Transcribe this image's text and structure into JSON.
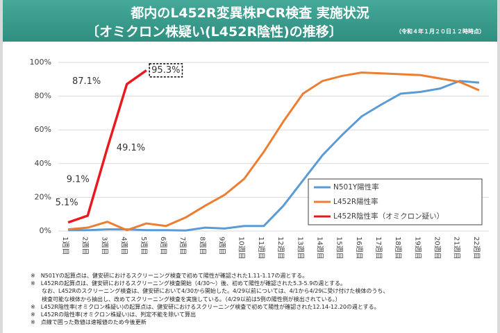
{
  "title": "都内のL452R変異株PCR検査 実施状況",
  "subtitle": "〔オミクロン株疑い(L452R陰性)の推移〕",
  "timestamp": "（令和４年１月２０日１２時時点）",
  "chart_data": {
    "type": "line",
    "categories": [
      "1週目",
      "2週目",
      "3週目",
      "4週目",
      "5週目",
      "6週目",
      "7週目",
      "8週目",
      "9週目",
      "10週目",
      "11週目",
      "12週目",
      "13週目",
      "14週目",
      "15週目",
      "16週目",
      "17週目",
      "18週目",
      "19週目",
      "20週目",
      "21週目",
      "22週目"
    ],
    "series": [
      {
        "name": "N501Y陽性率",
        "color": "#5b9bd5",
        "values": [
          0.5,
          0.5,
          1,
          1,
          0.5,
          0.5,
          0.3,
          2,
          1.5,
          3,
          3,
          15,
          30,
          45,
          57,
          68,
          75,
          81.5,
          82.5,
          84.5,
          89,
          88
        ]
      },
      {
        "name": "L452R陽性率",
        "color": "#ed7d31",
        "values": [
          1,
          2,
          5.5,
          0.5,
          4.5,
          3,
          8,
          15,
          21.5,
          31,
          47,
          65,
          81.5,
          89,
          92,
          94,
          93.5,
          93,
          92.5,
          90.5,
          88.5,
          83.5
        ]
      },
      {
        "name": "L452R陰性率（オミクロン疑い）",
        "color": "#e8191f",
        "values": [
          5.1,
          9.1,
          49.1,
          87.1,
          95.3,
          null,
          null,
          null,
          null,
          null,
          null,
          null,
          null,
          null,
          null,
          null,
          null,
          null,
          null,
          null,
          null,
          null
        ],
        "value_labels": [
          "5.1%",
          "9.1%",
          "49.1%",
          "87.1%",
          "95.3%",
          null,
          null,
          null,
          null,
          null,
          null,
          null,
          null,
          null,
          null,
          null,
          null,
          null,
          null,
          null,
          null,
          null
        ]
      }
    ],
    "ylim": [
      0,
      100
    ],
    "yticks": [
      {
        "value": 0,
        "label": "0%"
      },
      {
        "value": 20,
        "label": "20%"
      },
      {
        "value": 40,
        "label": "40%"
      },
      {
        "value": 60,
        "label": "60%"
      },
      {
        "value": 80,
        "label": "80%"
      },
      {
        "value": 100,
        "label": "100%"
      }
    ],
    "grid": true,
    "legend": "right"
  },
  "notes": [
    "※　N501Yの起算点は、健安研におけるスクリーニング検査で初めて陽性が確認された1.11-1.17の週とする。",
    "※　L452Rの起算点は、健安研におけるスクリーニング検査開始（4/30～）後、初めて陽性が確認された5.3-5.9の週とする。",
    "　　なお、L452Rのスクリーニング検査は、健安研において4/30から開始した。4/29以前については、4/1から4/29に受け付けた検体のうち、",
    "　　検査可能な検体から抽出し、改めてスクリーニング検査を実施している。（4/29以前は5例の陽性例が検出されている。）",
    "※　L452R陰性率(オミクロン株疑い)の起算点は、健安研におけるスクリーニング検査で初めて陽性が確認された12.14-12.20の週とする。",
    "※　L452Rの陰性率(オミクロン株疑い)は、判定不能を除いて算出",
    "※　点線で囲った数値は速報値のため今後更新"
  ]
}
